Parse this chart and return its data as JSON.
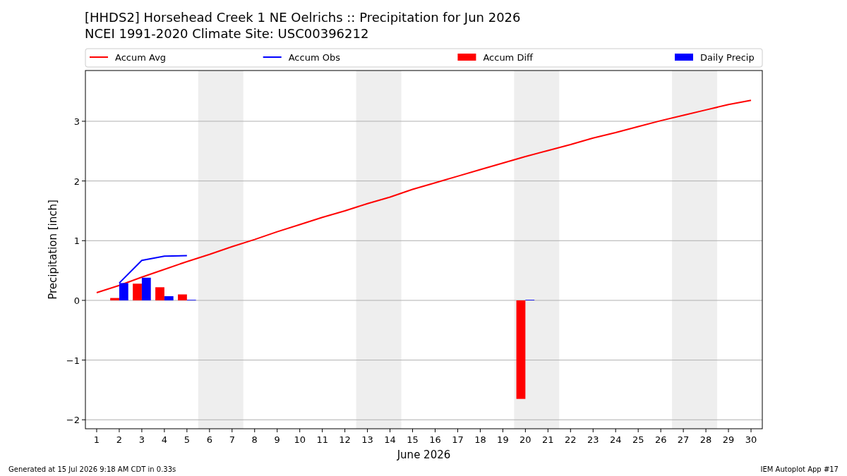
{
  "chart_data": {
    "type": "line",
    "title": "[HHDS2] Horsehead Creek 1 NE Oelrichs :: Precipitation for Jun 2026",
    "subtitle": "NCEI 1991-2020 Climate Site: USC00396212",
    "xlabel": "June 2026",
    "ylabel": "Precipitation [inch]",
    "xlim": [
      0.5,
      30.5
    ],
    "xticks": [
      1,
      2,
      3,
      4,
      5,
      6,
      7,
      8,
      9,
      10,
      11,
      12,
      13,
      14,
      15,
      16,
      17,
      18,
      19,
      20,
      21,
      22,
      23,
      24,
      25,
      26,
      27,
      28,
      29,
      30
    ],
    "ylim": [
      -2.15,
      3.85
    ],
    "yticks": [
      {
        "value": -2,
        "label": "−2"
      },
      {
        "value": -1,
        "label": "−1"
      },
      0,
      1,
      2,
      3
    ],
    "grid": "y",
    "legend": "top",
    "series": [
      {
        "name": "Accum Avg",
        "color": "#ff0000",
        "x": [
          1,
          2,
          3,
          4,
          5,
          6,
          7,
          8,
          9,
          10,
          11,
          12,
          13,
          14,
          15,
          16,
          17,
          18,
          19,
          20,
          21,
          22,
          23,
          24,
          25,
          26,
          27,
          28,
          29,
          30
        ],
        "values": [
          0.13,
          0.25,
          0.39,
          0.52,
          0.65,
          0.77,
          0.9,
          1.02,
          1.15,
          1.27,
          1.39,
          1.5,
          1.62,
          1.73,
          1.86,
          1.97,
          2.08,
          2.19,
          2.3,
          2.41,
          2.51,
          2.61,
          2.72,
          2.81,
          2.91,
          3.01,
          3.1,
          3.19,
          3.28,
          3.35
        ]
      },
      {
        "name": "Accum Obs",
        "color": "#0000ff",
        "x": [
          2,
          3,
          4,
          5
        ],
        "values": [
          0.29,
          0.67,
          0.74,
          0.75
        ]
      },
      {
        "name": "Accum Diff",
        "type": "bar",
        "color": "#ff0000",
        "x": [
          2,
          3,
          4,
          5,
          20
        ],
        "values": [
          0.04,
          0.28,
          0.22,
          0.1,
          -1.65
        ]
      },
      {
        "name": "Daily Precip",
        "type": "bar",
        "color": "#0000ff",
        "x": [
          2,
          3,
          4,
          5,
          20
        ],
        "values": [
          0.29,
          0.38,
          0.07,
          0.01,
          0.01
        ]
      }
    ],
    "bands": [
      {
        "axis": "x",
        "from": 5.5,
        "to": 7.5,
        "color": "#eeeeee"
      },
      {
        "axis": "x",
        "from": 12.5,
        "to": 14.5,
        "color": "#eeeeee"
      },
      {
        "axis": "x",
        "from": 19.5,
        "to": 21.5,
        "color": "#eeeeee"
      },
      {
        "axis": "x",
        "from": 26.5,
        "to": 28.5,
        "color": "#eeeeee"
      }
    ],
    "annotations": [
      "Generated at 15 Jul 2026 9:18 AM CDT in 0.33s",
      "IEM Autoplot App #17"
    ]
  }
}
